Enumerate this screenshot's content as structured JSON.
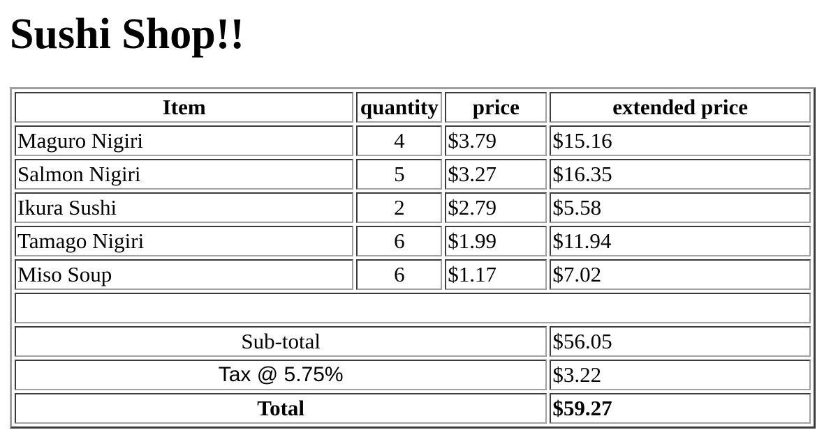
{
  "page": {
    "title": "Sushi Shop!!"
  },
  "table": {
    "headers": [
      "Item",
      "quantity",
      "price",
      "extended price"
    ],
    "rows": [
      {
        "item": "Maguro Nigiri",
        "quantity": "4",
        "price": "$3.79",
        "extended": "$15.16"
      },
      {
        "item": "Salmon Nigiri",
        "quantity": "5",
        "price": "$3.27",
        "extended": "$16.35"
      },
      {
        "item": "Ikura Sushi",
        "quantity": "2",
        "price": "$2.79",
        "extended": "$5.58"
      },
      {
        "item": "Tamago Nigiri",
        "quantity": "6",
        "price": "$1.99",
        "extended": "$11.94"
      },
      {
        "item": "Miso Soup",
        "quantity": "6",
        "price": "$1.17",
        "extended": "$7.02"
      }
    ],
    "summary": {
      "subtotal_label": "Sub-total",
      "subtotal_value": "$56.05",
      "tax_label": "Tax @ 5.75%",
      "tax_value": "$3.22",
      "total_label": "Total",
      "total_value": "$59.27"
    }
  }
}
